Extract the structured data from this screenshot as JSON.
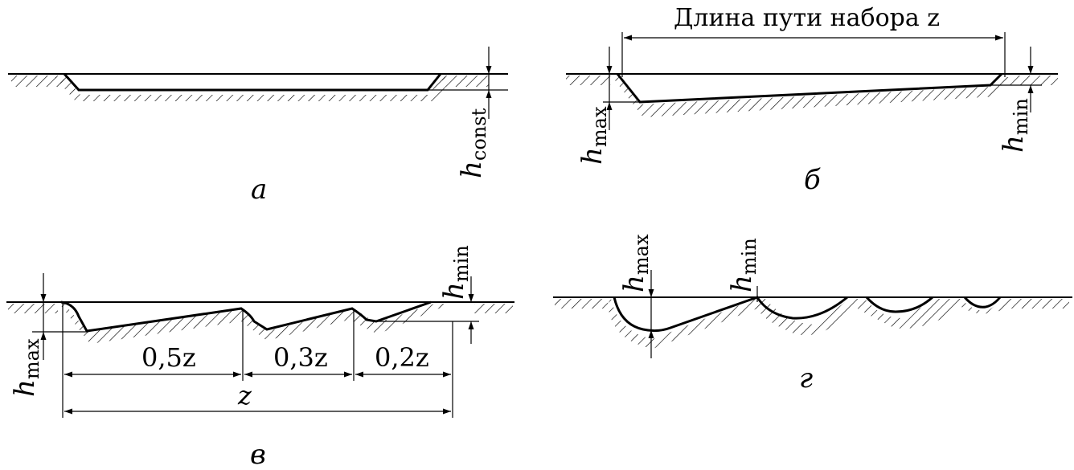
{
  "panels": {
    "a": {
      "label": "а",
      "h_const": {
        "base": "h",
        "sub": "const"
      }
    },
    "b": {
      "label": "б",
      "title": "Длина пути набора z",
      "h_max": {
        "base": "h",
        "sub": "max"
      },
      "h_min": {
        "base": "h",
        "sub": "min"
      }
    },
    "v": {
      "label": "в",
      "h_max": {
        "base": "h",
        "sub": "max"
      },
      "h_min": {
        "base": "h",
        "sub": "min"
      },
      "dims": {
        "d1": "0,5z",
        "d2": "0,3z",
        "d3": "0,2z",
        "total": "z"
      }
    },
    "g": {
      "label": "г",
      "h_max": {
        "base": "h",
        "sub": "max"
      },
      "h_min": {
        "base": "h",
        "sub": "min"
      }
    }
  }
}
